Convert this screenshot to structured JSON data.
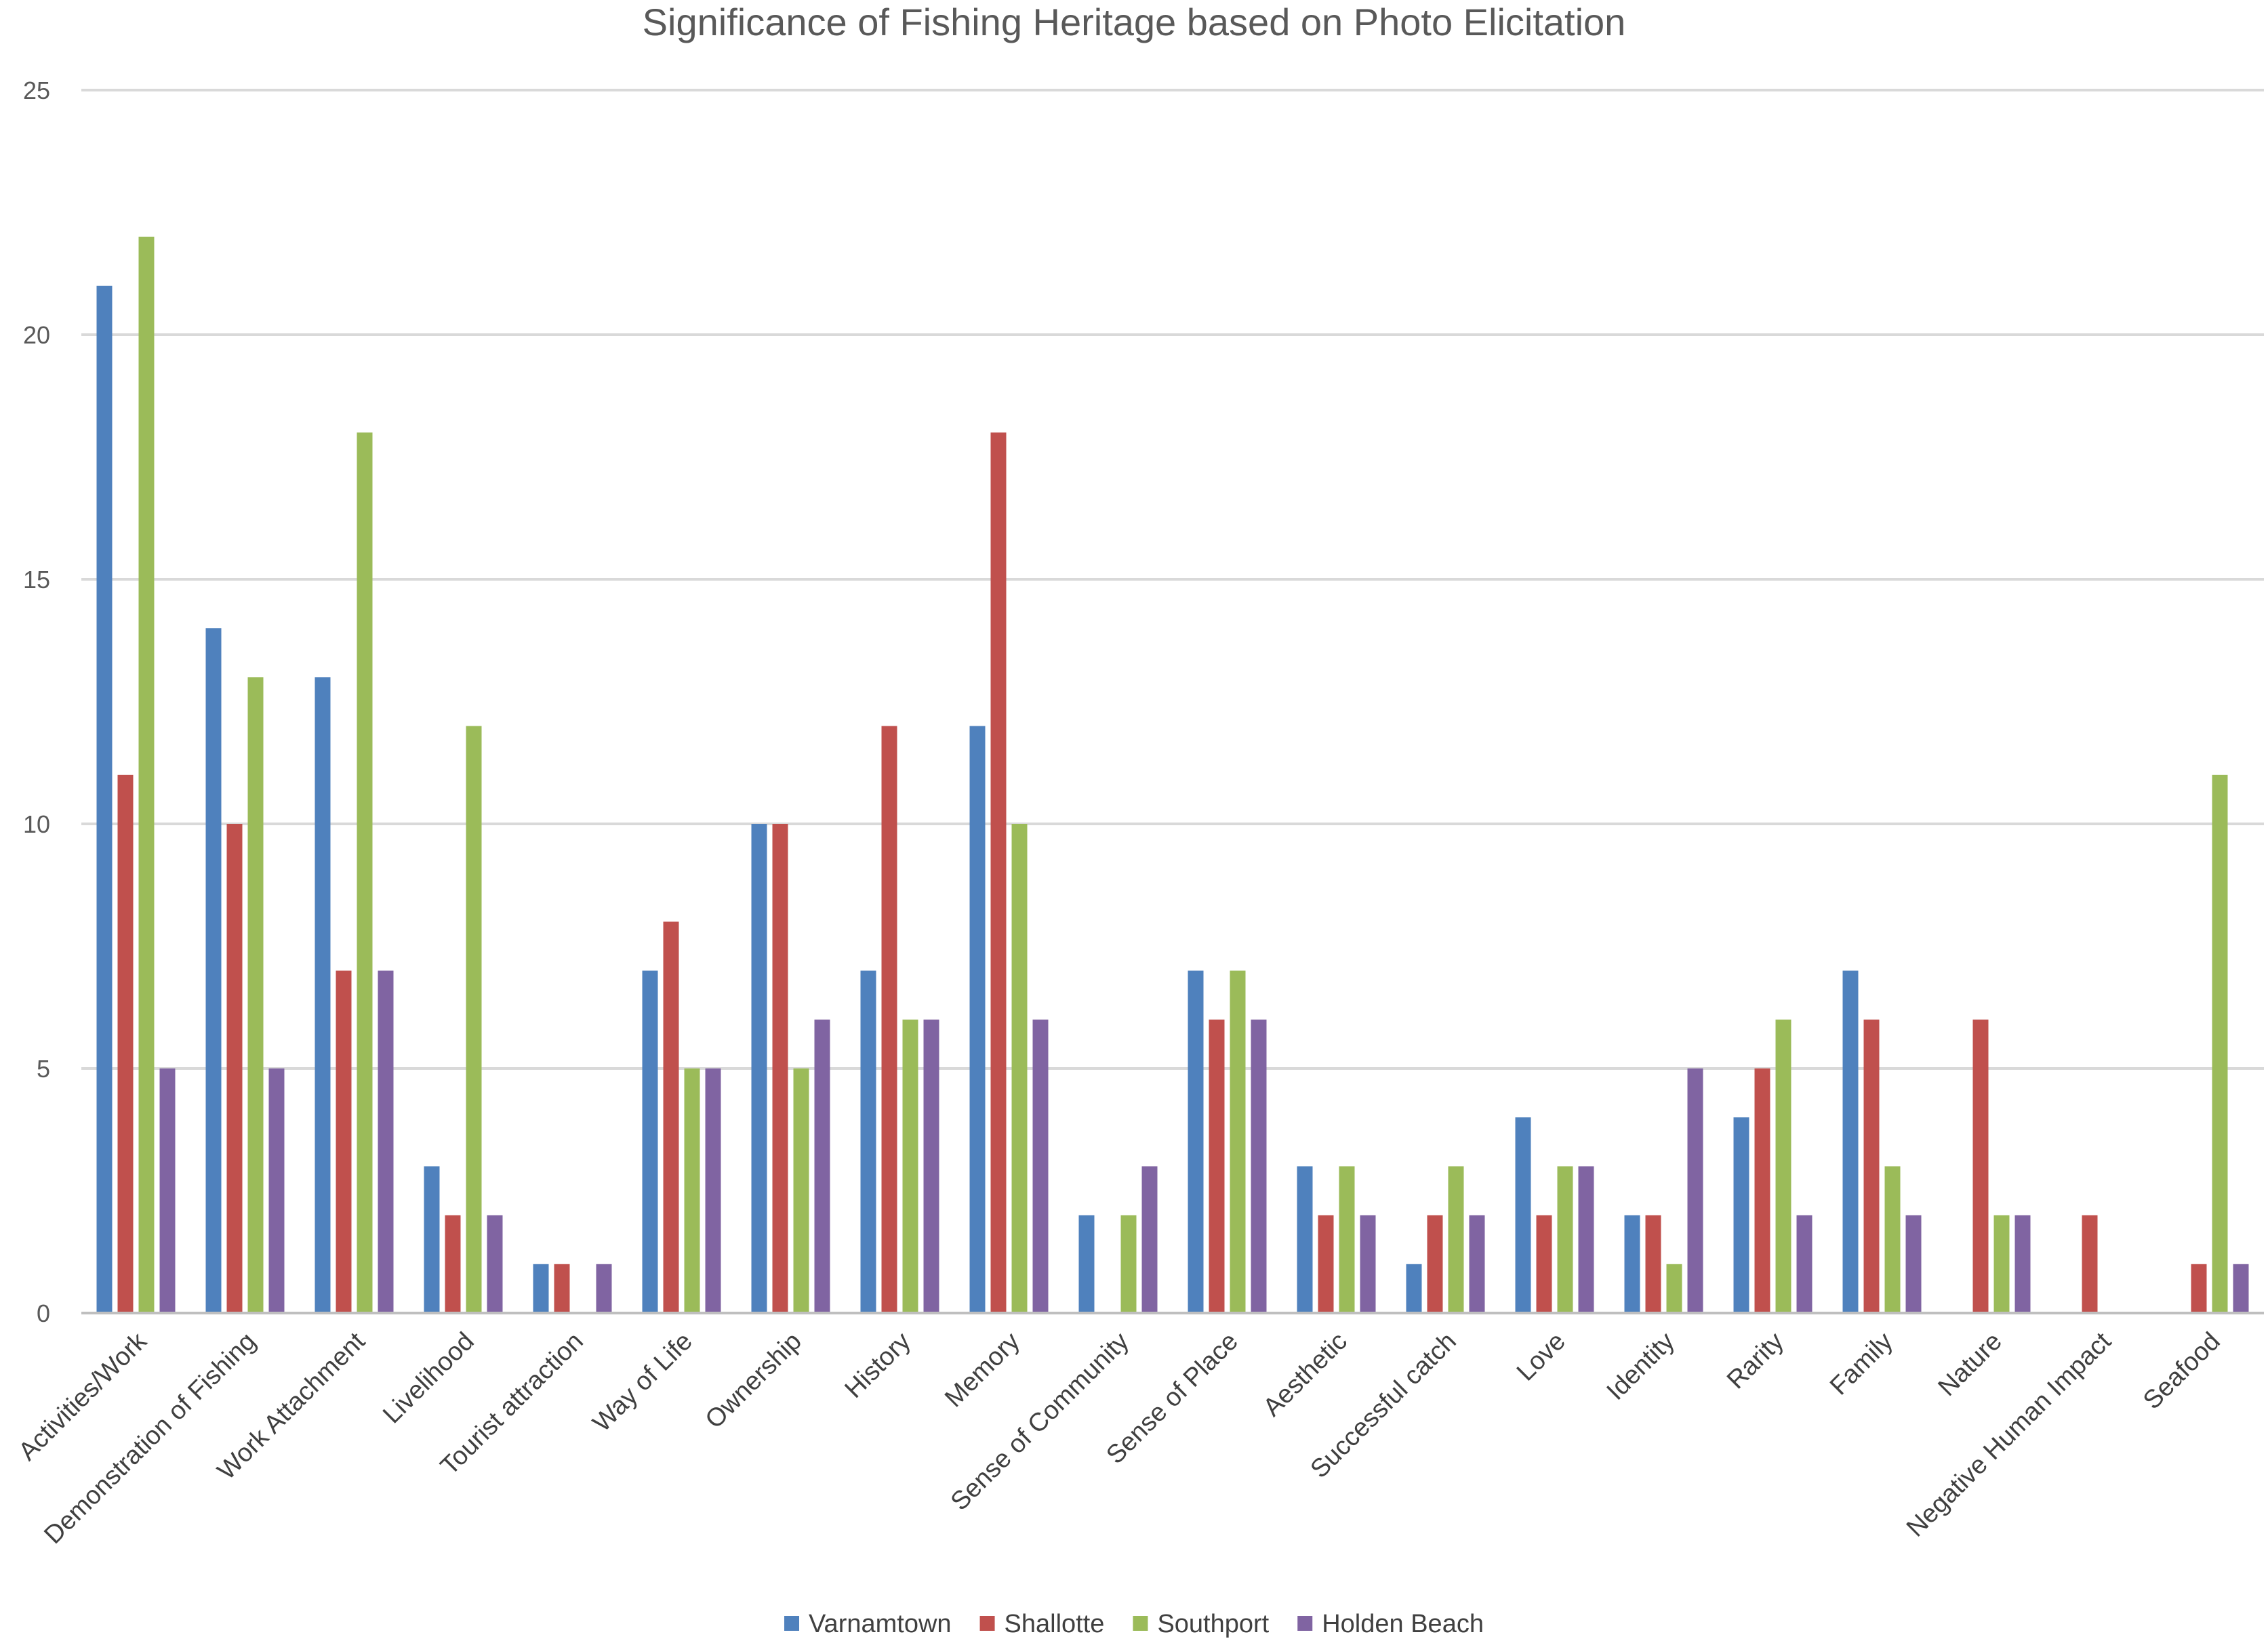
{
  "chart_data": {
    "type": "bar",
    "title": "Significance of Fishing Heritage based on Photo Elicitation",
    "xlabel": "",
    "ylabel": "",
    "ylim": [
      0,
      25
    ],
    "yticks": [
      0,
      5,
      10,
      15,
      20,
      25
    ],
    "grid": true,
    "legend_position": "bottom",
    "categories": [
      "Activities/Work",
      "Demonstration of Fishing",
      "Work Attachment",
      "Livelihood",
      "Tourist attraction",
      "Way of Life",
      "Ownership",
      "History",
      "Memory",
      "Sense of Community",
      "Sense of Place",
      "Aesthetic",
      "Successful catch",
      "Love",
      "Identity",
      "Rarity",
      "Family",
      "Nature",
      "Negative Human Impact",
      "Seafood"
    ],
    "series": [
      {
        "name": "Varnamtown",
        "color": "#4f81bd",
        "values": [
          21,
          14,
          13,
          3,
          1,
          7,
          10,
          7,
          12,
          2,
          7,
          3,
          1,
          4,
          2,
          4,
          7,
          0,
          0,
          0
        ]
      },
      {
        "name": "Shallotte",
        "color": "#c0504d",
        "values": [
          11,
          10,
          7,
          2,
          1,
          8,
          10,
          12,
          18,
          0,
          6,
          2,
          2,
          2,
          2,
          5,
          6,
          6,
          2,
          1
        ]
      },
      {
        "name": "Southport",
        "color": "#9bbb59",
        "values": [
          22,
          13,
          18,
          12,
          0,
          5,
          5,
          6,
          10,
          2,
          7,
          3,
          3,
          3,
          1,
          6,
          3,
          2,
          0,
          11
        ]
      },
      {
        "name": "Holden Beach",
        "color": "#8064a2",
        "values": [
          5,
          5,
          7,
          2,
          1,
          5,
          6,
          6,
          6,
          3,
          6,
          2,
          2,
          3,
          5,
          2,
          2,
          2,
          0,
          1
        ]
      }
    ]
  }
}
